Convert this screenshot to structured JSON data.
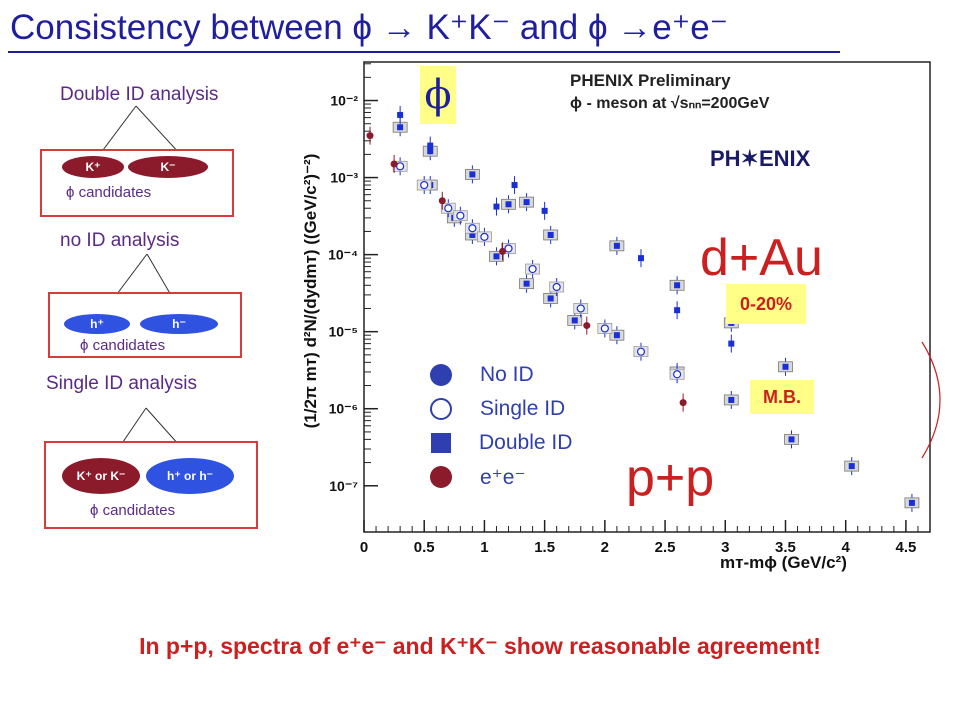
{
  "title": "Consistency between ϕ → K⁺K⁻ and ϕ →e⁺e⁻",
  "left_panel": {
    "double": {
      "heading": "Double ID  analysis",
      "left": "K⁺",
      "right": "K⁻",
      "candidates": "ϕ candidates"
    },
    "none": {
      "heading": "no ID analysis",
      "left": "h⁺",
      "right": "h⁻",
      "candidates": "ϕ candidates"
    },
    "single": {
      "heading": "Single ID analysis",
      "left": "K⁺ or K⁻",
      "right": "h⁺ or h⁻",
      "candidates": "ϕ candidates"
    }
  },
  "phi_label": "ϕ",
  "phenix": {
    "line1": "PHENIX Preliminary",
    "line2": "ϕ - meson at √sₙₙ=200GeV",
    "logo": "PH✶ENIX"
  },
  "labels": {
    "dau": "d+Au",
    "pp": "p+p",
    "cent1": "0-20%",
    "cent2": "M.B."
  },
  "legend": [
    {
      "name": "No ID",
      "symbol": "filled-circle"
    },
    {
      "name": "Single ID",
      "symbol": "open-circle"
    },
    {
      "name": "Double ID",
      "symbol": "filled-square"
    },
    {
      "name": "e⁺e⁻",
      "symbol": "filled-circle-red"
    }
  ],
  "colors": {
    "blue": "#1f1f9e",
    "data_blue": "#1a2fd6",
    "red": "#cc1f1f",
    "dark_red": "#8b1a2b",
    "yellow": "#ffff88"
  },
  "footer": "In p+p, spectra of e⁺e⁻ and K⁺K⁻ show reasonable agreement!",
  "chart_data": {
    "type": "scatter",
    "title": "",
    "xlabel": "mᴛ-mϕ (GeV/c²)",
    "ylabel": "(1/2π mᴛ) d²N/(dydmᴛ) ((GeV/c²)⁻²)",
    "xlim": [
      0,
      4.7
    ],
    "ylim_log10": [
      -7.6,
      -1.5
    ],
    "x_ticks": [
      0,
      0.5,
      1,
      1.5,
      2,
      2.5,
      3,
      3.5,
      4,
      4.5
    ],
    "x_tick_labels": [
      "0",
      "0.5",
      "1",
      "1.5",
      "2",
      "2.5",
      "3",
      "3.5",
      "4",
      "4.5"
    ],
    "y_ticks": [
      -2,
      -3,
      -4,
      -5,
      -6,
      -7
    ],
    "y_tick_labels": [
      "10⁻²",
      "10⁻³",
      "10⁻⁴",
      "10⁻⁵",
      "10⁻⁶",
      "10⁻⁷"
    ],
    "series": [
      {
        "name": "d+Au 0-20% (Double ID)",
        "marker": "square-boxed",
        "x": [
          0.3,
          0.55,
          0.9,
          1.2,
          1.35,
          1.55,
          2.1,
          2.6,
          3.05,
          3.5
        ],
        "y": [
          0.0045,
          0.0022,
          0.0011,
          0.00045,
          0.00048,
          0.00018,
          0.00013,
          4e-05,
          1.3e-05,
          3.5e-06
        ]
      },
      {
        "name": "d+Au 0-20% (No ID)",
        "marker": "square",
        "x": [
          0.3,
          0.55,
          1.1,
          1.25,
          1.5,
          2.3,
          2.6,
          3.05
        ],
        "y": [
          0.0065,
          0.0026,
          0.00042,
          0.0008,
          0.00037,
          9e-05,
          1.9e-05,
          7e-06
        ]
      },
      {
        "name": "d+Au M.B. (Double ID)",
        "marker": "square-boxed",
        "x": [
          0.55,
          0.75,
          0.9,
          1.1,
          1.35,
          1.55,
          1.75,
          2.1,
          2.6,
          3.05,
          3.55,
          4.05,
          4.55
        ],
        "y": [
          0.0008,
          0.0003,
          0.00018,
          9.5e-05,
          4.2e-05,
          2.7e-05,
          1.4e-05,
          9e-06,
          3e-06,
          1.3e-06,
          4e-07,
          1.8e-07,
          6e-08
        ]
      },
      {
        "name": "p+p (Single ID)",
        "marker": "open-circle",
        "x": [
          0.3,
          0.5,
          0.7,
          0.8,
          0.9,
          1.0,
          1.2,
          1.4,
          1.6,
          1.8,
          2.0,
          2.3,
          2.6
        ],
        "y": [
          0.0014,
          0.0008,
          0.0004,
          0.00032,
          0.00022,
          0.00017,
          0.00012,
          6.5e-05,
          3.8e-05,
          2e-05,
          1.1e-05,
          5.5e-06,
          2.8e-06
        ]
      },
      {
        "name": "p+p e⁺e⁻",
        "marker": "filled-circle-red",
        "x": [
          0.05,
          0.25,
          0.65,
          1.15,
          1.85,
          2.65
        ],
        "y": [
          0.0035,
          0.0015,
          0.0005,
          0.00011,
          1.2e-05,
          1.2e-06
        ]
      }
    ]
  }
}
